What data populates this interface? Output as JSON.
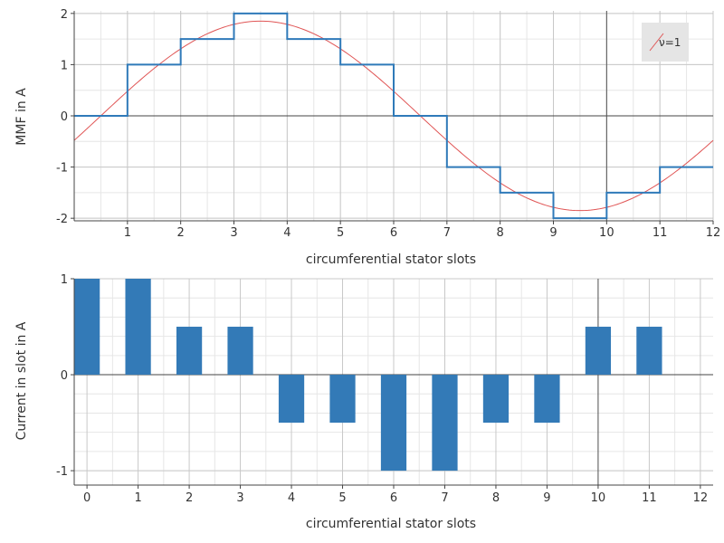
{
  "chart_data": [
    {
      "type": "line",
      "xlabel": "circumferential stator slots",
      "ylabel": "MMF in A",
      "xlim": [
        0,
        12
      ],
      "ylim": [
        -2.05,
        2.05
      ],
      "x_ticks": [
        1,
        2,
        3,
        4,
        5,
        6,
        7,
        8,
        9,
        10,
        11,
        12
      ],
      "y_ticks": [
        2,
        1,
        0,
        -1,
        -2
      ],
      "x_tick_labels": [
        "1",
        "2",
        "3",
        "4",
        "5",
        "6",
        "7",
        "8",
        "9",
        "10",
        "11",
        "12"
      ],
      "y_tick_labels": [
        "2",
        "1",
        "0",
        "-1",
        "-2"
      ],
      "grid": true,
      "legend": {
        "position": "top-right",
        "entries": [
          "ν=1"
        ]
      },
      "series": [
        {
          "kind": "step",
          "color": "#2f7ab9",
          "x": [
            0,
            1,
            2,
            3,
            4,
            5,
            6,
            7,
            8,
            9,
            10,
            11,
            12
          ],
          "values": [
            0,
            1,
            1.5,
            2,
            1.5,
            1,
            0,
            -1,
            -1.5,
            -2,
            -1.5,
            -1,
            -1
          ]
        },
        {
          "name": "ν=1",
          "kind": "line",
          "color": "#e05555",
          "amplitude": 1.85,
          "peak_x": 3.5,
          "period": 12
        }
      ]
    },
    {
      "type": "bar",
      "xlabel": "circumferential stator slots",
      "ylabel": "Current in slot in A",
      "xlim": [
        -0.25,
        12.25
      ],
      "ylim": [
        -1.15,
        1.0
      ],
      "x_ticks": [
        0,
        1,
        2,
        3,
        4,
        5,
        6,
        7,
        8,
        9,
        10,
        11,
        12
      ],
      "y_ticks": [
        1,
        0,
        -1
      ],
      "x_tick_labels": [
        "0",
        "1",
        "2",
        "3",
        "4",
        "5",
        "6",
        "7",
        "8",
        "9",
        "10",
        "11",
        "12"
      ],
      "y_tick_labels": [
        "1",
        "0",
        "-1"
      ],
      "grid": true,
      "color": "#337ab7",
      "categories": [
        0,
        1,
        2,
        3,
        4,
        5,
        6,
        7,
        8,
        9,
        10,
        11
      ],
      "values": [
        1,
        1,
        0.5,
        0.5,
        -0.5,
        -0.5,
        -1,
        -1,
        -0.5,
        -0.5,
        0.5,
        0.5
      ]
    }
  ]
}
